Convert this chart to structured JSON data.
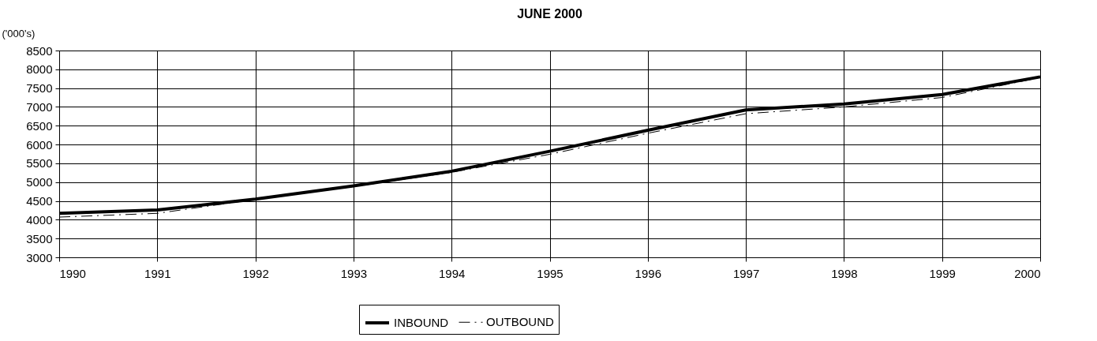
{
  "chart_data": {
    "type": "line",
    "title": "JUNE 2000",
    "ylabel": "('000's)",
    "x": [
      1990,
      1991,
      1992,
      1993,
      1994,
      1995,
      1996,
      1997,
      1998,
      1999,
      2000
    ],
    "series": [
      {
        "name": "INBOUND",
        "color": "#000000",
        "line_style": "solid",
        "values": [
          4170,
          4260,
          4550,
          4900,
          5290,
          5820,
          6380,
          6920,
          7080,
          7330,
          7800
        ]
      },
      {
        "name": "OUTBOUND",
        "color": "#000000",
        "line_style": "dashed",
        "values": [
          4070,
          4170,
          4540,
          4880,
          5260,
          5740,
          6300,
          6820,
          7000,
          7250,
          7780
        ]
      }
    ],
    "xlim": [
      1990,
      2000
    ],
    "xticks": [
      1990,
      1991,
      1992,
      1993,
      1994,
      1995,
      1996,
      1997,
      1998,
      1999,
      2000
    ],
    "ylim": [
      3000,
      8500
    ],
    "yticks": [
      3000,
      3500,
      4000,
      4500,
      5000,
      5500,
      6000,
      6500,
      7000,
      7500,
      8000,
      8500
    ],
    "grid": true,
    "legend": "bottom",
    "marker": "none"
  }
}
